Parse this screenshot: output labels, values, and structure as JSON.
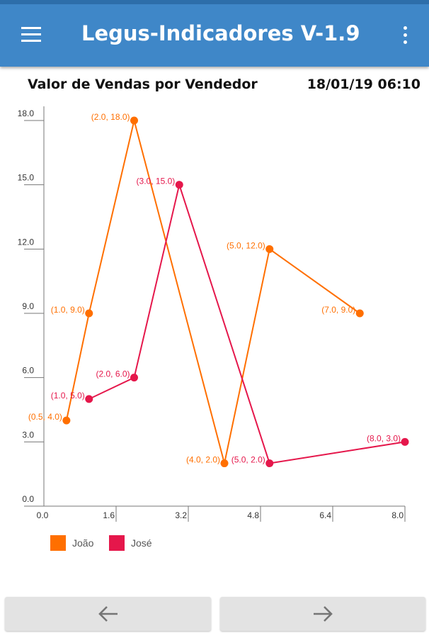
{
  "app_bar": {
    "title": "Legus-Indicadores V-1.9",
    "menu_icon": "hamburger-menu-icon",
    "overflow_icon": "more-vertical-icon",
    "color": "#3f87c8"
  },
  "header": {
    "chart_title": "Valor de Vendas por Vendedor",
    "timestamp": "18/01/19 06:10"
  },
  "chart_data": {
    "type": "line",
    "title": "Valor de Vendas por Vendedor",
    "xlabel": "",
    "ylabel": "",
    "xlim": [
      0.0,
      8.0
    ],
    "ylim": [
      0.0,
      18.0
    ],
    "x_ticks": [
      "0.0",
      "1.6",
      "3.2",
      "4.8",
      "6.4",
      "8.0"
    ],
    "y_ticks": [
      "0.0",
      "3.0",
      "6.0",
      "9.0",
      "12.0",
      "15.0",
      "18.0"
    ],
    "legend_position": "bottom-left",
    "grid": false,
    "series": [
      {
        "name": "João",
        "color": "#ff6f00",
        "x": [
          0.5,
          1.0,
          2.0,
          4.0,
          5.0,
          7.0
        ],
        "y": [
          4.0,
          9.0,
          18.0,
          2.0,
          12.0,
          9.0
        ],
        "labels": [
          "(0.5, 4.0)",
          "(1.0, 9.0)",
          "(2.0, 18.0)",
          "(4.0, 2.0)",
          "(5.0, 12.0)",
          "(7.0, 9.0)"
        ]
      },
      {
        "name": "José",
        "color": "#e5174b",
        "x": [
          1.0,
          2.0,
          3.0,
          5.0,
          8.0
        ],
        "y": [
          5.0,
          6.0,
          15.0,
          2.0,
          3.0
        ],
        "labels": [
          "(1.0, 5.0)",
          "(2.0, 6.0)",
          "(3.0, 15.0)",
          "(5.0, 2.0)",
          "(8.0, 3.0)"
        ]
      }
    ]
  },
  "navigation": {
    "back_icon": "arrow-left-icon",
    "forward_icon": "arrow-right-icon"
  }
}
